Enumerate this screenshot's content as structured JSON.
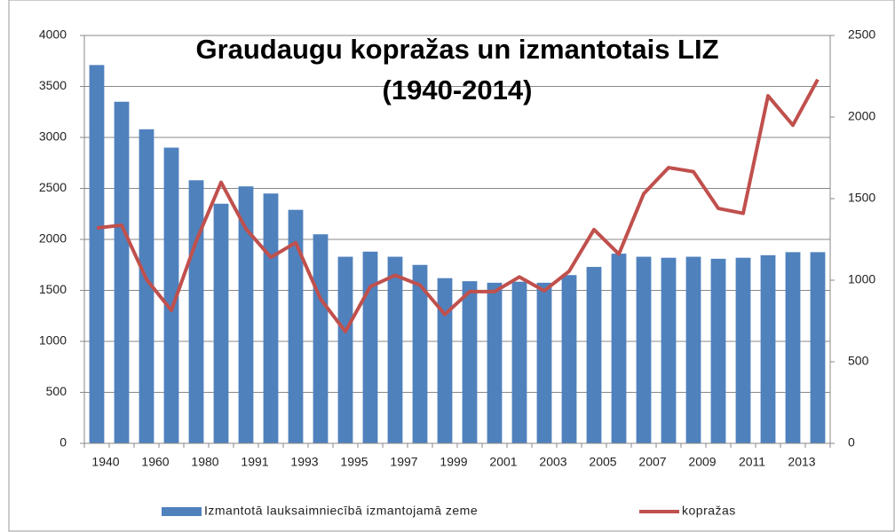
{
  "chart_data": {
    "type": "bar_line",
    "title": "Graudaugu kopražas un izmantotais LIZ",
    "subtitle": "(1940-2014)",
    "categories": [
      "1940",
      null,
      "1960",
      null,
      "1980",
      null,
      "1991",
      null,
      "1993",
      null,
      "1995",
      null,
      "1997",
      null,
      "1999",
      null,
      "2001",
      null,
      "2003",
      null,
      "2005",
      null,
      "2007",
      null,
      "2009",
      null,
      "2011",
      null,
      "2013",
      null
    ],
    "series": [
      {
        "name": "Izmantotā lauksaimniecībā izmantojamā zeme",
        "type": "bar",
        "color": "#4f81bd",
        "values": [
          3710,
          3350,
          3080,
          2900,
          2580,
          2350,
          2520,
          2450,
          2290,
          2050,
          1830,
          1880,
          1830,
          1750,
          1620,
          1590,
          1575,
          1585,
          1575,
          1650,
          1730,
          1860,
          1830,
          1820,
          1830,
          1810,
          1820,
          1845,
          1875,
          1875
        ]
      },
      {
        "name": "kopražas",
        "type": "line",
        "axis": "y2",
        "color": "#c0504d",
        "values": [
          1320,
          1337,
          1005,
          815,
          1240,
          1600,
          1315,
          1140,
          1230,
          885,
          685,
          960,
          1030,
          970,
          790,
          930,
          930,
          1020,
          935,
          1055,
          1310,
          1160,
          1530,
          1690,
          1665,
          1440,
          1410,
          2130,
          1950,
          2230
        ]
      }
    ],
    "ylim": [
      0,
      4000
    ],
    "yticks": [
      0,
      500,
      1000,
      1500,
      2000,
      2500,
      3000,
      3500,
      4000
    ],
    "y2lim": [
      0,
      2500
    ],
    "y2ticks": [
      0,
      500,
      1000,
      1500,
      2000,
      2500
    ],
    "grid": true,
    "legend": "bottom"
  }
}
